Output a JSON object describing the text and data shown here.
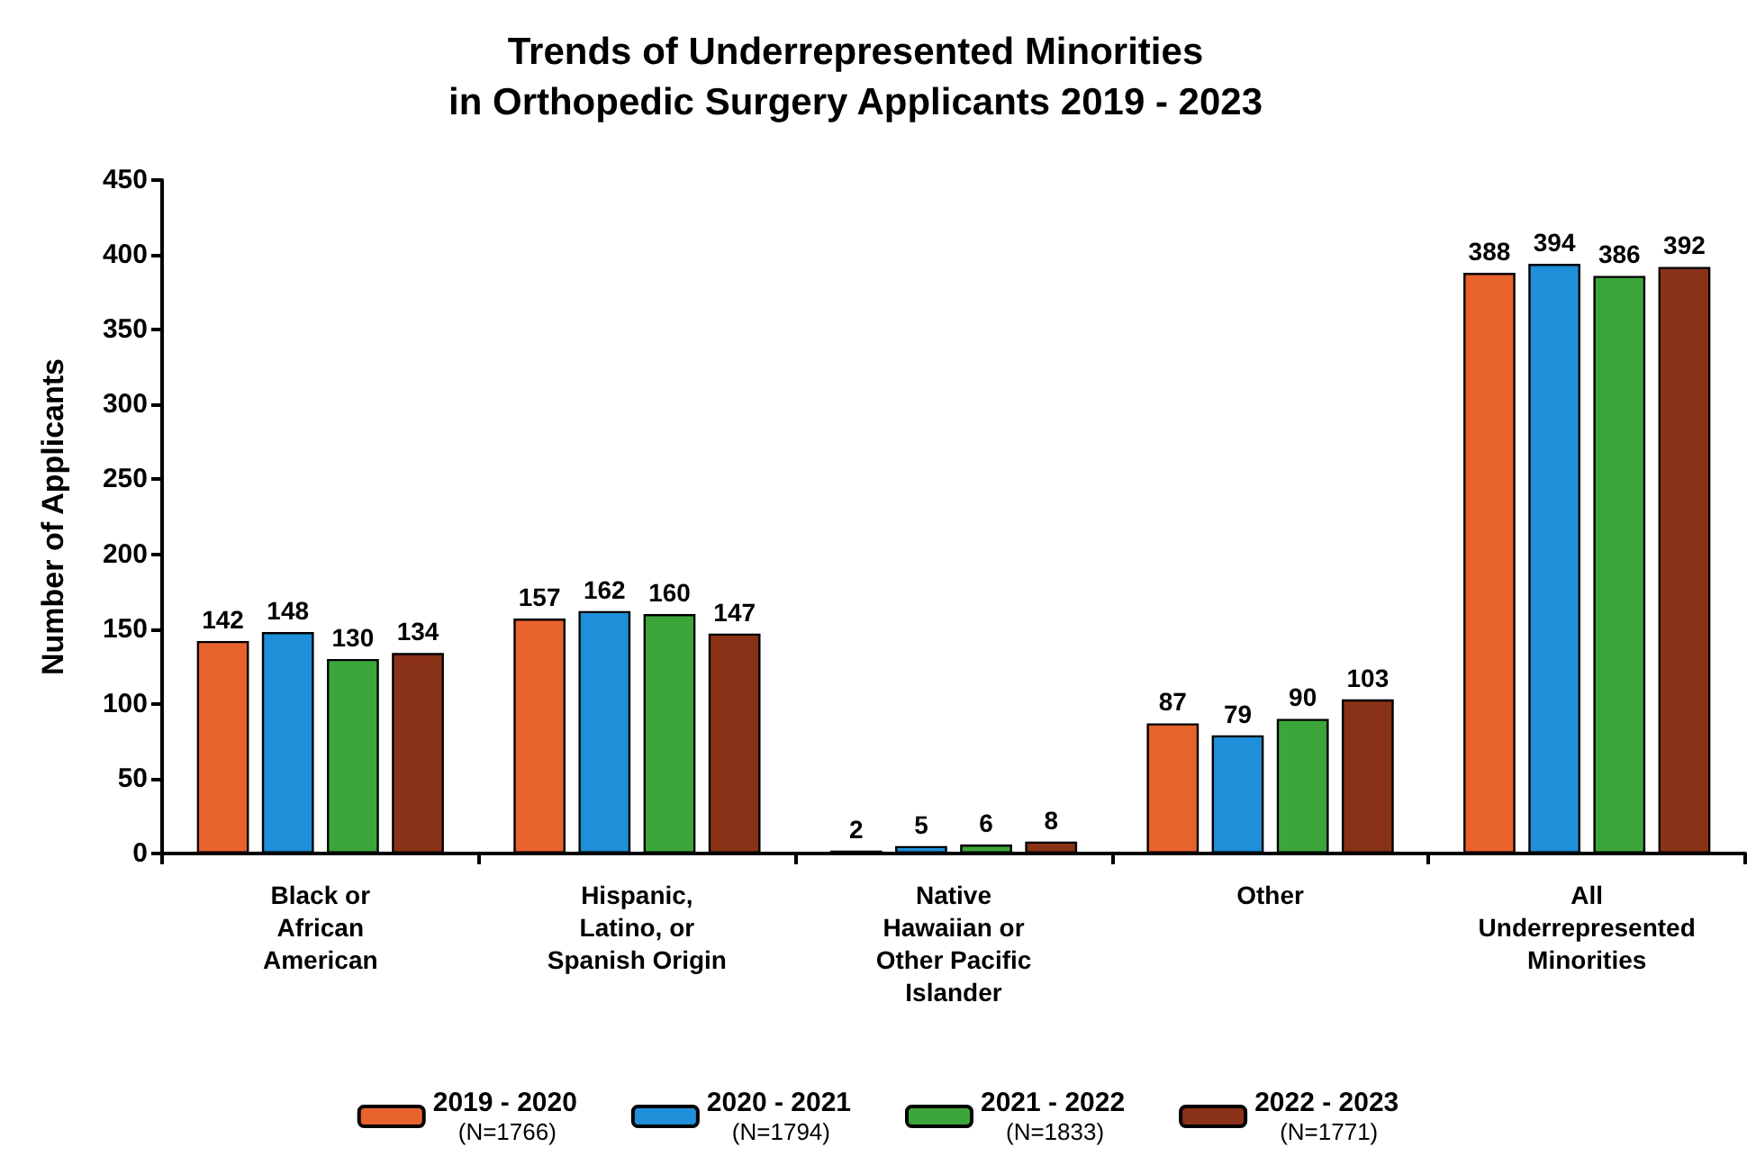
{
  "chart_data": {
    "type": "bar",
    "title": "Trends of Underrepresented Minorities\nin Orthopedic Surgery Applicants 2019 - 2023",
    "ylabel": "Number of Applicants",
    "categories": [
      "Black or\nAfrican\nAmerican",
      "Hispanic,\nLatino, or\nSpanish Origin",
      "Native\nHawaiian or\nOther Pacific\nIslander",
      "Other",
      "All\nUnderrepresented\nMinorities"
    ],
    "series": [
      {
        "name": "2019 - 2020\n(N=1766)",
        "color": "#e8622c",
        "values": [
          142,
          157,
          2,
          87,
          388
        ]
      },
      {
        "name": "2020 - 2021\n(N=1794)",
        "color": "#1e8fd8",
        "values": [
          148,
          162,
          5,
          79,
          394
        ]
      },
      {
        "name": "2021 - 2022\n(N=1833)",
        "color": "#3da63a",
        "values": [
          130,
          160,
          6,
          90,
          386
        ]
      },
      {
        "name": "2022 - 2023\n(N=1771)",
        "color": "#8a3217",
        "values": [
          134,
          147,
          8,
          103,
          392
        ]
      }
    ],
    "ylim": [
      0,
      450
    ],
    "yticks": [
      0,
      50,
      100,
      150,
      200,
      250,
      300,
      350,
      400,
      450
    ],
    "grid": false,
    "legend": "bottom",
    "data_labels": true
  }
}
